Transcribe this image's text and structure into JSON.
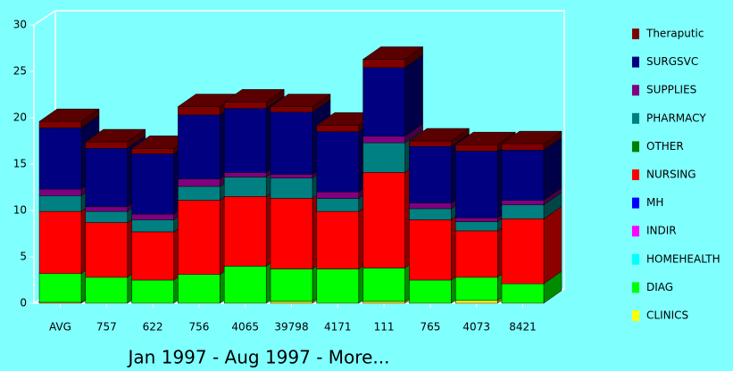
{
  "chart_data": {
    "type": "bar3d_stacked",
    "subtitle": "Jan 1997 - Aug 1997 - More...",
    "categories": [
      "AVG",
      "757",
      "622",
      "756",
      "4065",
      "39798",
      "4171",
      "111",
      "765",
      "4073",
      "8421"
    ],
    "ylim": [
      0,
      30
    ],
    "yticks": [
      0,
      5,
      10,
      15,
      20,
      25,
      30
    ],
    "series": [
      {
        "name": "CLINICS",
        "color": "#ffff00",
        "values": [
          0.1,
          0,
          0,
          0,
          0,
          0.2,
          0,
          0.2,
          0,
          0.3,
          0
        ]
      },
      {
        "name": "DIAG",
        "color": "#00ff00",
        "values": [
          3.1,
          2.8,
          2.5,
          3.1,
          4.0,
          3.5,
          3.7,
          3.6,
          2.5,
          2.5,
          2.1
        ]
      },
      {
        "name": "HOMEHEALTH",
        "color": "#00ffff",
        "values": [
          0,
          0,
          0,
          0,
          0,
          0,
          0,
          0,
          0,
          0,
          0
        ]
      },
      {
        "name": "INDIR",
        "color": "#ff00ff",
        "values": [
          0,
          0,
          0,
          0,
          0,
          0,
          0,
          0,
          0,
          0,
          0
        ]
      },
      {
        "name": "MH",
        "color": "#0000ff",
        "values": [
          0,
          0,
          0,
          0,
          0,
          0,
          0,
          0,
          0,
          0,
          0
        ]
      },
      {
        "name": "NURSING",
        "color": "#ff0000",
        "values": [
          6.7,
          5.9,
          5.2,
          8.0,
          7.5,
          7.6,
          6.2,
          10.3,
          6.5,
          5.0,
          7.0
        ]
      },
      {
        "name": "OTHER",
        "color": "#008000",
        "values": [
          0,
          0,
          0,
          0,
          0,
          0,
          0,
          0,
          0,
          0,
          0
        ]
      },
      {
        "name": "PHARMACY",
        "color": "#008080",
        "values": [
          1.7,
          1.2,
          1.3,
          1.5,
          2.1,
          2.2,
          1.4,
          3.2,
          1.2,
          1.0,
          1.5
        ]
      },
      {
        "name": "SUPPLIES",
        "color": "#800080",
        "values": [
          0.7,
          0.5,
          0.6,
          0.8,
          0.5,
          0.4,
          0.7,
          0.7,
          0.6,
          0.4,
          0.5
        ]
      },
      {
        "name": "SURGSVC",
        "color": "#000080",
        "values": [
          6.6,
          6.3,
          6.5,
          6.9,
          6.9,
          6.7,
          6.5,
          7.4,
          6.1,
          7.2,
          5.4
        ]
      },
      {
        "name": "Theraputic",
        "color": "#800000",
        "values": [
          0.7,
          0.7,
          0.6,
          0.9,
          0.7,
          0.6,
          0.7,
          0.9,
          0.6,
          0.7,
          0.7
        ]
      }
    ]
  }
}
